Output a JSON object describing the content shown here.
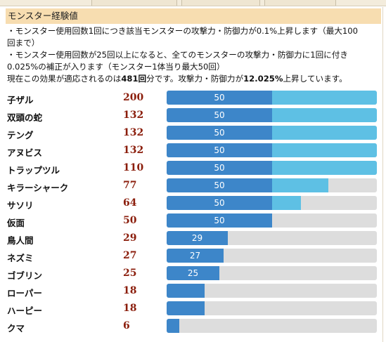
{
  "header": {
    "title": "モンスター経験値"
  },
  "description": {
    "line1": "・モンスター使用回数1回につき該当モンスターの攻撃力・防御力が0.1%上昇します（最大100",
    "line2": "回まで）",
    "line3": "・モンスター使用回数が25回以上になると、全てのモンスターの攻撃力・防御力に1回に付き",
    "line4": "0.025%の補正が入ります（モンスター1体当り最大50回）",
    "line5_pre": "現在この効果が適応されるのは",
    "line5_count": "481回",
    "line5_mid": "分です。攻撃力・防御力が",
    "line5_percent": "12.025%",
    "line5_post": "上昇しています。"
  },
  "monsters": [
    {
      "name": "子ザル",
      "count": "200",
      "bar_label": "50",
      "ratio": 1.0
    },
    {
      "name": "双頭の蛇",
      "count": "132",
      "bar_label": "50",
      "ratio": 1.0
    },
    {
      "name": "テング",
      "count": "132",
      "bar_label": "50",
      "ratio": 1.0
    },
    {
      "name": "アヌビス",
      "count": "132",
      "bar_label": "50",
      "ratio": 1.0
    },
    {
      "name": "トラップツル",
      "count": "110",
      "bar_label": "50",
      "ratio": 1.0
    },
    {
      "name": "キラーシャーク",
      "count": "77",
      "bar_label": "50",
      "ratio": 0.77
    },
    {
      "name": "サソリ",
      "count": "64",
      "bar_label": "50",
      "ratio": 0.64
    },
    {
      "name": "仮面",
      "count": "50",
      "bar_label": "50",
      "ratio": 0.5
    },
    {
      "name": "鳥人間",
      "count": "29",
      "bar_label": "29",
      "ratio": 0.29
    },
    {
      "name": "ネズミ",
      "count": "27",
      "bar_label": "27",
      "ratio": 0.27
    },
    {
      "name": "ゴブリン",
      "count": "25",
      "bar_label": "25",
      "ratio": 0.25
    },
    {
      "name": "ローパー",
      "count": "18",
      "bar_label": "",
      "ratio": 0.18
    },
    {
      "name": "ハーピー",
      "count": "18",
      "bar_label": "",
      "ratio": 0.18
    },
    {
      "name": "クマ",
      "count": "6",
      "bar_label": "",
      "ratio": 0.06
    }
  ],
  "colors": {
    "bar_dark": "#3d86c9",
    "bar_light": "#5ec0e4",
    "bar_track": "#dddddd",
    "count_text": "#8b1e0c",
    "header_bg": "#f7ddb0"
  }
}
